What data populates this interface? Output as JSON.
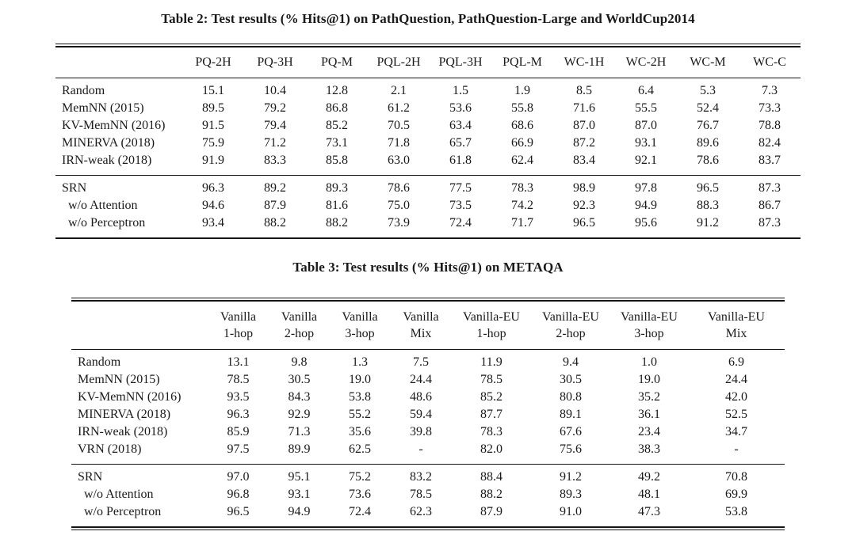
{
  "page": {
    "background": "#ffffff",
    "text_color": "#1a1a1a",
    "rule_color": "#141414"
  },
  "table2": {
    "caption": "Table 2: Test results (% Hits@1) on PathQuestion, PathQuestion-Large and WorldCup2014",
    "columns": [
      "PQ-2H",
      "PQ-3H",
      "PQ-M",
      "PQL-2H",
      "PQL-3H",
      "PQL-M",
      "WC-1H",
      "WC-2H",
      "WC-M",
      "WC-C"
    ],
    "groups": [
      {
        "rows": [
          {
            "label": "Random",
            "indent": false,
            "bold_label": false,
            "values": [
              "15.1",
              "10.4",
              "12.8",
              "2.1",
              "1.5",
              "1.9",
              "8.5",
              "6.4",
              "5.3",
              "7.3"
            ]
          },
          {
            "label": "MemNN (2015)",
            "indent": false,
            "bold_label": false,
            "values": [
              "89.5",
              "79.2",
              "86.8",
              "61.2",
              "53.6",
              "55.8",
              "71.6",
              "55.5",
              "52.4",
              "73.3"
            ]
          },
          {
            "label": "KV-MemNN (2016)",
            "indent": false,
            "bold_label": false,
            "values": [
              "91.5",
              "79.4",
              "85.2",
              "70.5",
              "63.4",
              "68.6",
              "87.0",
              "87.0",
              "76.7",
              "78.8"
            ]
          },
          {
            "label": "MINERVA (2018)",
            "indent": false,
            "bold_label": false,
            "values": [
              "75.9",
              "71.2",
              "73.1",
              "71.8",
              "65.7",
              "66.9",
              "87.2",
              "93.1",
              "89.6",
              "82.4"
            ]
          },
          {
            "label": "IRN-weak (2018)",
            "indent": false,
            "bold_label": false,
            "values": [
              "91.9",
              "83.3",
              "85.8",
              "63.0",
              "61.8",
              "62.4",
              "83.4",
              "92.1",
              "78.6",
              "83.7"
            ]
          }
        ]
      },
      {
        "rows": [
          {
            "label": "SRN",
            "indent": false,
            "bold_label": true,
            "values": [
              "96.3",
              "89.2",
              "89.3",
              "78.6",
              "77.5",
              "78.3",
              "98.9",
              "97.8",
              "96.5",
              "87.3"
            ],
            "bold": [
              1,
              1,
              1,
              1,
              1,
              1,
              1,
              1,
              1,
              1
            ]
          },
          {
            "label": "w/o Attention",
            "indent": true,
            "bold_label": false,
            "values": [
              "94.6",
              "87.9",
              "81.6",
              "75.0",
              "73.5",
              "74.2",
              "92.3",
              "94.9",
              "88.3",
              "86.7"
            ]
          },
          {
            "label": "w/o Perceptron",
            "indent": true,
            "bold_label": false,
            "values": [
              "93.4",
              "88.2",
              "88.2",
              "73.9",
              "72.4",
              "71.7",
              "96.5",
              "95.6",
              "91.2",
              "87.3"
            ]
          }
        ]
      }
    ]
  },
  "table3": {
    "caption": "Table 3: Test results (% Hits@1) on METAQA",
    "columns": [
      {
        "top": "Vanilla",
        "bottom": "1-hop"
      },
      {
        "top": "Vanilla",
        "bottom": "2-hop"
      },
      {
        "top": "Vanilla",
        "bottom": "3-hop"
      },
      {
        "top": "Vanilla",
        "bottom": "Mix"
      },
      {
        "top": "Vanilla-EU",
        "bottom": "1-hop"
      },
      {
        "top": "Vanilla-EU",
        "bottom": "2-hop"
      },
      {
        "top": "Vanilla-EU",
        "bottom": "3-hop"
      },
      {
        "top": "Vanilla-EU",
        "bottom": "Mix"
      }
    ],
    "groups": [
      {
        "rows": [
          {
            "label": "Random",
            "indent": false,
            "bold_label": false,
            "values": [
              "13.1",
              "9.8",
              "1.3",
              "7.5",
              "11.9",
              "9.4",
              "1.0",
              "6.9"
            ]
          },
          {
            "label": "MemNN (2015)",
            "indent": false,
            "bold_label": false,
            "values": [
              "78.5",
              "30.5",
              "19.0",
              "24.4",
              "78.5",
              "30.5",
              "19.0",
              "24.4"
            ]
          },
          {
            "label": "KV-MemNN (2016)",
            "indent": false,
            "bold_label": false,
            "values": [
              "93.5",
              "84.3",
              "53.8",
              "48.6",
              "85.2",
              "80.8",
              "35.2",
              "42.0"
            ]
          },
          {
            "label": "MINERVA (2018)",
            "indent": false,
            "bold_label": false,
            "values": [
              "96.3",
              "92.9",
              "55.2",
              "59.4",
              "87.7",
              "89.1",
              "36.1",
              "52.5"
            ]
          },
          {
            "label": "IRN-weak (2018)",
            "indent": false,
            "bold_label": false,
            "values": [
              "85.9",
              "71.3",
              "35.6",
              "39.8",
              "78.3",
              "67.6",
              "23.4",
              "34.7"
            ]
          },
          {
            "label": "VRN (2018)",
            "indent": false,
            "bold_label": false,
            "values": [
              "97.5",
              "89.9",
              "62.5",
              "-",
              "82.0",
              "75.6",
              "38.3",
              "-"
            ],
            "bold": [
              1,
              0,
              0,
              0,
              0,
              0,
              0,
              0
            ]
          }
        ]
      },
      {
        "rows": [
          {
            "label": "SRN",
            "indent": false,
            "bold_label": true,
            "values": [
              "97.0",
              "95.1",
              "75.2",
              "83.2",
              "88.4",
              "91.2",
              "49.2",
              "70.8"
            ],
            "bold": [
              0,
              1,
              1,
              1,
              1,
              1,
              1,
              1
            ]
          },
          {
            "label": "w/o Attention",
            "indent": true,
            "bold_label": false,
            "values": [
              "96.8",
              "93.1",
              "73.6",
              "78.5",
              "88.2",
              "89.3",
              "48.1",
              "69.9"
            ]
          },
          {
            "label": "w/o Perceptron",
            "indent": true,
            "bold_label": false,
            "values": [
              "96.5",
              "94.9",
              "72.4",
              "62.3",
              "87.9",
              "91.0",
              "47.3",
              "53.8"
            ]
          }
        ]
      }
    ]
  }
}
